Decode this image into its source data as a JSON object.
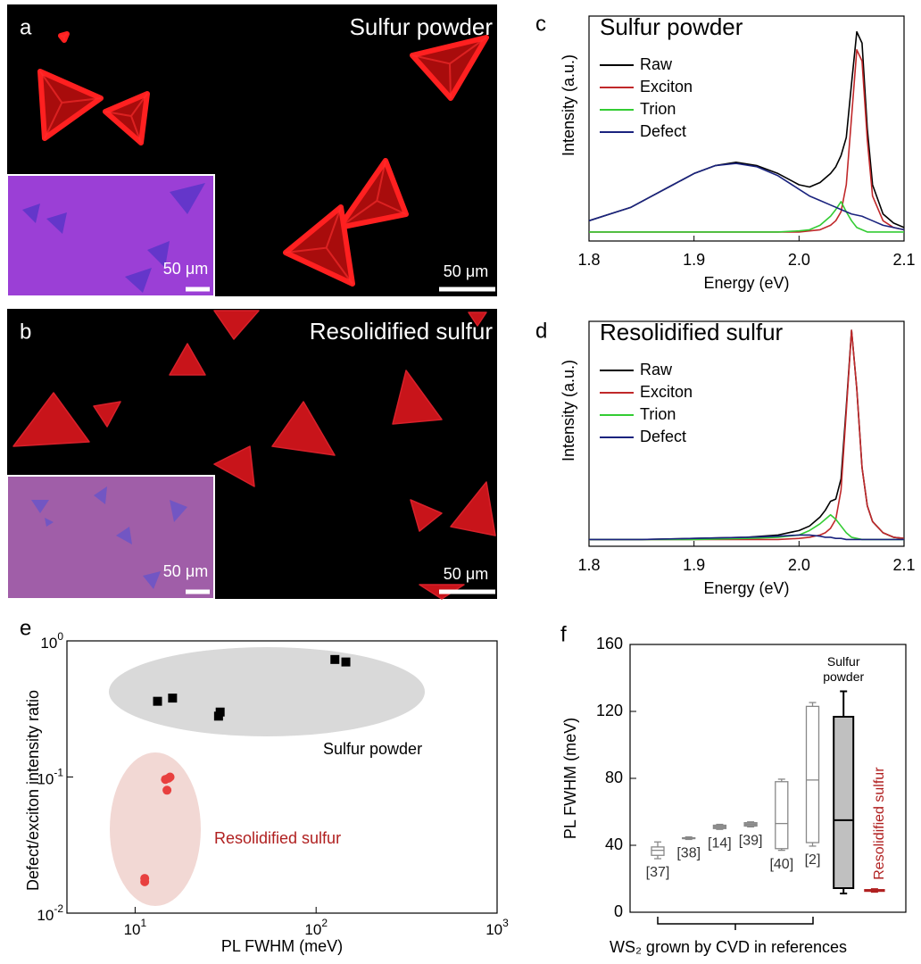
{
  "images": [
    {
      "label": "a",
      "title": "Sulfur powder",
      "scale_bar": "50 μm",
      "inset_scale_bar": "50 μm"
    },
    {
      "label": "b",
      "title": "Resolidified sulfur",
      "scale_bar": "50 μm",
      "inset_scale_bar": "50 μm"
    }
  ],
  "chart_data": [
    {
      "type": "line",
      "panel_label": "c",
      "title": "Sulfur powder",
      "x_label": "Energy (eV)",
      "y_label": "Intensity (a.u.)",
      "x": [
        1.8,
        1.82,
        1.84,
        1.86,
        1.88,
        1.9,
        1.92,
        1.94,
        1.96,
        1.98,
        2.0,
        2.01,
        2.02,
        2.03,
        2.035,
        2.04,
        2.045,
        2.05,
        2.055,
        2.06,
        2.065,
        2.07,
        2.08,
        2.09,
        2.1
      ],
      "series": [
        {
          "name": "Raw",
          "color": "#000000",
          "values": [
            0.09,
            0.12,
            0.15,
            0.2,
            0.25,
            0.3,
            0.335,
            0.35,
            0.335,
            0.3,
            0.25,
            0.24,
            0.26,
            0.3,
            0.33,
            0.38,
            0.46,
            0.7,
            0.93,
            0.88,
            0.5,
            0.25,
            0.12,
            0.08,
            0.06
          ]
        },
        {
          "name": "Exciton",
          "color": "#c0282a",
          "values": [
            0.04,
            0.04,
            0.04,
            0.04,
            0.04,
            0.04,
            0.04,
            0.04,
            0.04,
            0.04,
            0.04,
            0.045,
            0.05,
            0.07,
            0.09,
            0.13,
            0.25,
            0.55,
            0.85,
            0.8,
            0.45,
            0.2,
            0.09,
            0.06,
            0.05
          ]
        },
        {
          "name": "Trion",
          "color": "#33cc33",
          "values": [
            0.04,
            0.04,
            0.04,
            0.04,
            0.04,
            0.04,
            0.04,
            0.04,
            0.04,
            0.04,
            0.045,
            0.05,
            0.07,
            0.11,
            0.14,
            0.175,
            0.13,
            0.09,
            0.06,
            0.05,
            0.04,
            0.04,
            0.04,
            0.04,
            0.04
          ]
        },
        {
          "name": "Defect",
          "color": "#1a237e",
          "values": [
            0.09,
            0.12,
            0.15,
            0.2,
            0.25,
            0.3,
            0.335,
            0.345,
            0.33,
            0.29,
            0.23,
            0.2,
            0.18,
            0.16,
            0.15,
            0.14,
            0.13,
            0.12,
            0.115,
            0.11,
            0.1,
            0.09,
            0.07,
            0.06,
            0.05
          ]
        }
      ],
      "xlim": [
        1.8,
        2.1
      ],
      "xticks": [
        1.8,
        1.9,
        {
          "value": 2,
          "label": "2.0"
        },
        2.1
      ],
      "ylim": [
        0,
        1
      ]
    },
    {
      "type": "line",
      "panel_label": "d",
      "title": "Resolidified sulfur",
      "x_label": "Energy (eV)",
      "y_label": "Intensity (a.u.)",
      "x": [
        1.8,
        1.85,
        1.9,
        1.95,
        1.98,
        2.0,
        2.01,
        2.02,
        2.025,
        2.03,
        2.035,
        2.04,
        2.045,
        2.05,
        2.055,
        2.06,
        2.065,
        2.07,
        2.08,
        2.09,
        2.1
      ],
      "series": [
        {
          "name": "Raw",
          "color": "#000000",
          "values": [
            0.03,
            0.03,
            0.035,
            0.04,
            0.05,
            0.07,
            0.09,
            0.13,
            0.16,
            0.2,
            0.21,
            0.3,
            0.62,
            0.96,
            0.7,
            0.35,
            0.18,
            0.11,
            0.06,
            0.04,
            0.035
          ]
        },
        {
          "name": "Exciton",
          "color": "#c0282a",
          "values": [
            0.03,
            0.03,
            0.03,
            0.03,
            0.03,
            0.035,
            0.04,
            0.05,
            0.06,
            0.08,
            0.12,
            0.25,
            0.6,
            0.96,
            0.7,
            0.35,
            0.18,
            0.11,
            0.06,
            0.04,
            0.035
          ]
        },
        {
          "name": "Trion",
          "color": "#33cc33",
          "values": [
            0.03,
            0.03,
            0.03,
            0.035,
            0.04,
            0.05,
            0.07,
            0.1,
            0.12,
            0.14,
            0.12,
            0.09,
            0.06,
            0.04,
            0.035,
            0.03,
            0.03,
            0.03,
            0.03,
            0.03,
            0.03
          ]
        },
        {
          "name": "Defect",
          "color": "#1a237e",
          "values": [
            0.03,
            0.03,
            0.035,
            0.04,
            0.045,
            0.05,
            0.05,
            0.045,
            0.04,
            0.04,
            0.035,
            0.035,
            0.03,
            0.03,
            0.03,
            0.03,
            0.03,
            0.03,
            0.03,
            0.03,
            0.03
          ]
        }
      ],
      "xlim": [
        1.8,
        2.1
      ],
      "xticks": [
        1.8,
        1.9,
        {
          "value": 2,
          "label": "2.0"
        },
        2.1
      ],
      "ylim": [
        0,
        1
      ]
    },
    {
      "type": "scatter",
      "panel_label": "e",
      "x_label": "PL FWHM (meV)",
      "y_label": "Defect/exciton intensity ratio",
      "log_scale": true,
      "series": [
        {
          "name": "Sulfur powder",
          "color": "#000000",
          "marker": "square",
          "x": [
            13.3,
            16.1,
            28.9,
            29.5,
            127,
            146
          ],
          "values": [
            0.36,
            0.38,
            0.28,
            0.3,
            0.73,
            0.7
          ]
        },
        {
          "name": "Resolidified sulfur",
          "color": "#e8403f",
          "marker": "circle",
          "x": [
            11.3,
            11.3,
            14.7,
            15.6,
            15.0,
            15.3
          ],
          "values": [
            0.018,
            0.017,
            0.096,
            0.1,
            0.08,
            0.098
          ]
        }
      ],
      "xlim": [
        4.2,
        1000
      ],
      "ylim": [
        0.01,
        1
      ],
      "xticks": [
        {
          "value": 10,
          "label": "10^1"
        },
        {
          "value": 100,
          "label": "10^2"
        },
        {
          "value": 1000,
          "label": "10^3"
        }
      ],
      "yticks": [
        {
          "value": 1,
          "label": "10^0"
        },
        {
          "value": 0.1,
          "label": "10^-1"
        },
        {
          "value": 0.01,
          "label": "10^-2"
        }
      ]
    },
    {
      "type": "box",
      "panel_label": "f",
      "y_label": "PL  FWHM (meV)",
      "x_label": "WS₂ grown by CVD in references",
      "categories": [
        "[37]",
        "[38]",
        "[14]",
        "[39]",
        "[40]",
        "[2]",
        "Sulfur powder",
        "Resolidified sulfur"
      ],
      "boxes": [
        {
          "min": 32,
          "q1": 34,
          "median": 37,
          "q3": 39,
          "max": 42
        },
        {
          "min": 43.5,
          "q1": 44,
          "median": 44,
          "q3": 44.5,
          "max": 45
        },
        {
          "min": 49.5,
          "q1": 50,
          "median": 51,
          "q3": 52,
          "max": 52.5
        },
        {
          "min": 51,
          "q1": 51.5,
          "median": 52.5,
          "q3": 53.5,
          "max": 54
        },
        {
          "min": 37,
          "q1": 38,
          "median": 53,
          "q3": 78,
          "max": 79.5
        },
        {
          "min": 39.5,
          "q1": 41.6,
          "median": 79,
          "q3": 123,
          "max": 125.3
        },
        {
          "min": 11.2,
          "q1": 14.4,
          "median": 55,
          "q3": 116.8,
          "max": 132
        },
        {
          "min": 12,
          "q1": 12.5,
          "median": 13,
          "q3": 13.5,
          "max": 14
        }
      ],
      "colors": [
        "#ffffff",
        "#bbbbbb",
        "#999999",
        "#999999",
        "#ffffff",
        "#ffffff",
        "#c0c0c0",
        "#e05050"
      ],
      "edge_colors": [
        "#888888",
        "#888888",
        "#888888",
        "#888888",
        "#888888",
        "#888888",
        "#000000",
        "#b02020"
      ],
      "ylim": [
        0,
        160
      ],
      "yticks": [
        0,
        40,
        80,
        120,
        160
      ]
    }
  ]
}
